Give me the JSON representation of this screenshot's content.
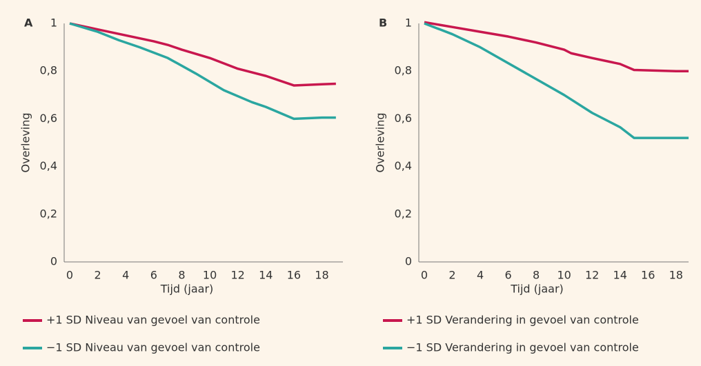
{
  "chart_data": [
    {
      "type": "line",
      "panel": "A",
      "xlabel": "Tijd (jaar)",
      "ylabel": "Overleving",
      "xlim": [
        0,
        19.5
      ],
      "ylim": [
        0,
        1
      ],
      "xticks": [
        0,
        2,
        4,
        6,
        8,
        10,
        12,
        14,
        16,
        18
      ],
      "yticks": [
        0,
        {
          "value": 0.2,
          "label": "0,2"
        },
        {
          "value": 0.4,
          "label": "0,4"
        },
        {
          "value": 0.6,
          "label": "0,6"
        },
        {
          "value": 0.8,
          "label": "0,8"
        },
        1
      ],
      "series": [
        {
          "name": "+1 SD Niveau van gevoel van controle",
          "color": "#c8174e",
          "x": [
            0,
            2,
            4,
            6,
            7,
            8,
            10,
            12,
            14,
            16,
            18,
            19
          ],
          "values": [
            1,
            0.975,
            0.95,
            0.925,
            0.91,
            0.89,
            0.855,
            0.81,
            0.78,
            0.74,
            0.745,
            0.747
          ]
        },
        {
          "name": "−1 SD Niveau van gevoel van controle",
          "color": "#2aa6a0",
          "x": [
            0,
            2,
            3.5,
            5,
            7,
            9,
            11,
            13,
            14,
            16,
            18,
            19
          ],
          "values": [
            1,
            0.965,
            0.93,
            0.9,
            0.855,
            0.79,
            0.72,
            0.67,
            0.65,
            0.6,
            0.605,
            0.605
          ]
        }
      ]
    },
    {
      "type": "line",
      "panel": "B",
      "xlabel": "Tijd (jaar)",
      "ylabel": "Overleving",
      "xlim": [
        0,
        18.9
      ],
      "ylim": [
        0,
        1
      ],
      "xticks": [
        0,
        2,
        4,
        6,
        8,
        10,
        12,
        14,
        16,
        18
      ],
      "yticks": [
        0,
        {
          "value": 0.2,
          "label": "0,2"
        },
        {
          "value": 0.4,
          "label": "0,4"
        },
        {
          "value": 0.6,
          "label": "0,6"
        },
        {
          "value": 0.8,
          "label": "0,8"
        },
        1
      ],
      "series": [
        {
          "name": "+1 SD Verandering in gevoel van controle",
          "color": "#c8174e",
          "x": [
            0,
            2,
            4,
            6,
            8,
            10,
            10.5,
            12,
            14,
            15,
            18,
            18.9
          ],
          "values": [
            1.005,
            0.985,
            0.965,
            0.945,
            0.92,
            0.89,
            0.875,
            0.855,
            0.83,
            0.805,
            0.8,
            0.8
          ]
        },
        {
          "name": "−1 SD Verandering in gevoel van controle",
          "color": "#2aa6a0",
          "x": [
            0,
            2,
            4,
            7,
            10,
            12,
            14,
            15,
            18,
            18.9
          ],
          "values": [
            1,
            0.955,
            0.9,
            0.8,
            0.7,
            0.625,
            0.565,
            0.52,
            0.52,
            0.52
          ]
        }
      ]
    }
  ]
}
